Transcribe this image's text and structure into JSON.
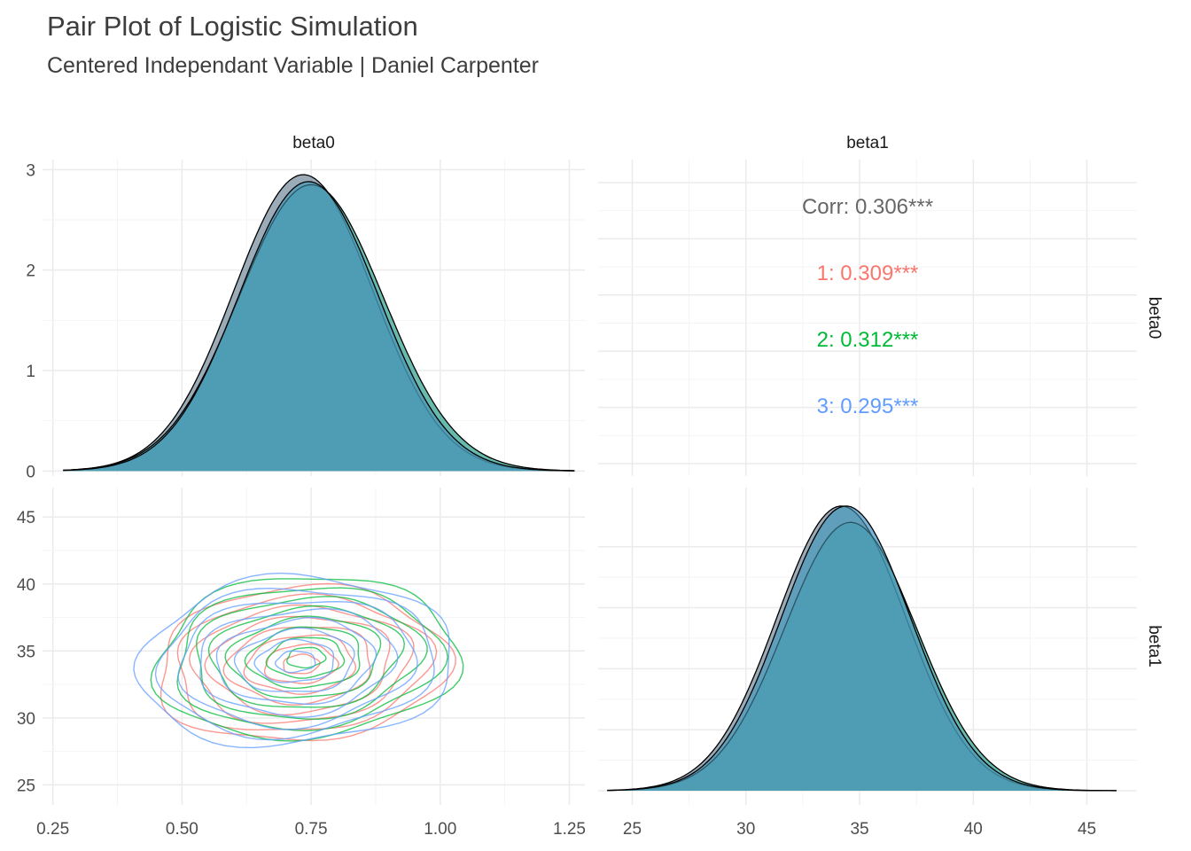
{
  "title": "Pair Plot of Logistic Simulation",
  "subtitle": "Centered Independant Variable | Daniel Carpenter",
  "chart_data": {
    "type": "pairs",
    "variables": [
      "beta0",
      "beta1"
    ],
    "groups": [
      {
        "name": "1",
        "color": "#F8766D"
      },
      {
        "name": "2",
        "color": "#00BA38"
      },
      {
        "name": "3",
        "color": "#619CFF"
      }
    ],
    "fill_color": "#4a9ab4",
    "axes": {
      "beta0": {
        "range": [
          0.23,
          1.28
        ],
        "ticks": [
          0.25,
          0.5,
          0.75,
          1.0,
          1.25
        ],
        "tick_labels": [
          "0.25",
          "0.50",
          "0.75",
          "1.00",
          "1.25"
        ]
      },
      "beta1": {
        "range": [
          23.5,
          47.2
        ],
        "ticks": [
          25,
          30,
          35,
          40,
          45
        ],
        "tick_labels": [
          "25",
          "30",
          "35",
          "40",
          "45"
        ]
      },
      "density_beta0_y": {
        "range": [
          -0.05,
          3.1
        ],
        "ticks": [
          0,
          1,
          2,
          3
        ],
        "tick_labels": [
          "0",
          "1",
          "2",
          "3"
        ]
      }
    },
    "density_beta0": {
      "range": [
        0.27,
        1.26
      ],
      "series": [
        {
          "name": "1",
          "mean": 0.735,
          "sd": 0.135,
          "peak": 2.95
        },
        {
          "name": "2",
          "mean": 0.75,
          "sd": 0.14,
          "peak": 2.85
        },
        {
          "name": "3",
          "mean": 0.745,
          "sd": 0.135,
          "peak": 2.88
        }
      ]
    },
    "density_beta1": {
      "range": [
        23.9,
        46.3
      ],
      "series": [
        {
          "name": "1",
          "mean": 34.2,
          "sd": 2.85,
          "peak": 0.14
        },
        {
          "name": "2",
          "mean": 34.6,
          "sd": 2.9,
          "peak": 0.132
        },
        {
          "name": "3",
          "mean": 34.4,
          "sd": 2.85,
          "peak": 0.14
        }
      ]
    },
    "contours": {
      "center_beta0": [
        0.73,
        0.74,
        0.72
      ],
      "center_beta1": [
        34.0,
        34.5,
        34.2
      ],
      "extent_beta0": [
        0.46,
        1.07
      ],
      "extent_beta1": [
        28.0,
        40.8
      ]
    },
    "correlations": [
      {
        "label": "Corr: 0.306***",
        "color": "#666666"
      },
      {
        "label": "1: 0.309***",
        "color": "#F8766D"
      },
      {
        "label": "2: 0.312***",
        "color": "#00BA38"
      },
      {
        "label": "3: 0.295***",
        "color": "#619CFF"
      }
    ]
  }
}
